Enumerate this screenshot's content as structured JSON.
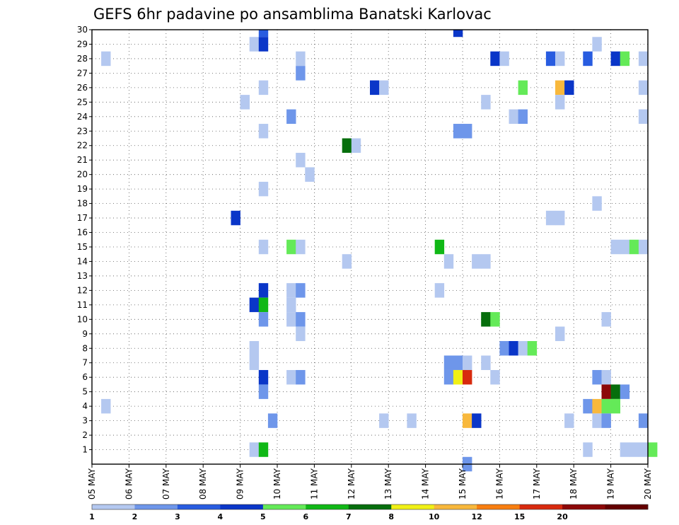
{
  "chart_data": {
    "type": "heatmap",
    "title": "GEFS 6hr padavine po ansamblima Banatski Karlovac",
    "y_ticks": [
      "1",
      "2",
      "3",
      "4",
      "5",
      "6",
      "7",
      "8",
      "9",
      "10",
      "11",
      "12",
      "13",
      "14",
      "15",
      "16",
      "17",
      "18",
      "19",
      "20",
      "21",
      "22",
      "23",
      "24",
      "25",
      "26",
      "27",
      "28",
      "29",
      "30"
    ],
    "x_ticks": [
      "05 MAY",
      "06 MAY",
      "07 MAY",
      "08 MAY",
      "09 MAY",
      "10 MAY",
      "11 MAY",
      "12 MAY",
      "13 MAY",
      "14 MAY",
      "15 MAY",
      "16 MAY",
      "17 MAY",
      "18 MAY",
      "19 MAY",
      "20 MAY"
    ],
    "x_range_days": [
      0,
      15
    ],
    "y_range": [
      0,
      30
    ],
    "grid": true,
    "colorbar": {
      "tick_labels": [
        "1",
        "2",
        "3",
        "4",
        "5",
        "6",
        "7",
        "8",
        "10",
        "12",
        "15",
        "20"
      ],
      "colors": [
        "#b4c8f0",
        "#6e96ea",
        "#285ce0",
        "#0a36c8",
        "#64ea58",
        "#10b816",
        "#066e0c",
        "#f0f016",
        "#f8b83c",
        "#f87e10",
        "#d82a0e",
        "#8c0808",
        "#640000"
      ]
    },
    "cells": [
      {
        "x": 4.5,
        "y": 30,
        "v": 3
      },
      {
        "x": 9.75,
        "y": 30,
        "v": 4
      },
      {
        "x": 4.25,
        "y": 29,
        "v": 1
      },
      {
        "x": 4.5,
        "y": 29,
        "v": 4
      },
      {
        "x": 13.5,
        "y": 29,
        "v": 1
      },
      {
        "x": 0.25,
        "y": 28,
        "v": 1
      },
      {
        "x": 5.5,
        "y": 28,
        "v": 1
      },
      {
        "x": 10.75,
        "y": 28,
        "v": 4
      },
      {
        "x": 11,
        "y": 28,
        "v": 1
      },
      {
        "x": 12.25,
        "y": 28,
        "v": 3
      },
      {
        "x": 12.5,
        "y": 28,
        "v": 1
      },
      {
        "x": 13.25,
        "y": 28,
        "v": 3
      },
      {
        "x": 14,
        "y": 28,
        "v": 4
      },
      {
        "x": 14.25,
        "y": 28,
        "v": 5
      },
      {
        "x": 14.75,
        "y": 28,
        "v": 1
      },
      {
        "x": 5.5,
        "y": 27,
        "v": 2
      },
      {
        "x": 4.5,
        "y": 26,
        "v": 1
      },
      {
        "x": 7.5,
        "y": 26,
        "v": 4
      },
      {
        "x": 7.75,
        "y": 26,
        "v": 1
      },
      {
        "x": 11.5,
        "y": 26,
        "v": 5
      },
      {
        "x": 12.5,
        "y": 26,
        "v": 9
      },
      {
        "x": 12.75,
        "y": 26,
        "v": 4
      },
      {
        "x": 14.75,
        "y": 26,
        "v": 1
      },
      {
        "x": 4,
        "y": 25,
        "v": 1
      },
      {
        "x": 10.5,
        "y": 25,
        "v": 1
      },
      {
        "x": 12.5,
        "y": 25,
        "v": 1
      },
      {
        "x": 5.25,
        "y": 24,
        "v": 2
      },
      {
        "x": 11.25,
        "y": 24,
        "v": 1
      },
      {
        "x": 11.5,
        "y": 24,
        "v": 2
      },
      {
        "x": 14.75,
        "y": 24,
        "v": 1
      },
      {
        "x": 4.5,
        "y": 23,
        "v": 1
      },
      {
        "x": 9.75,
        "y": 23,
        "v": 2
      },
      {
        "x": 10,
        "y": 23,
        "v": 2
      },
      {
        "x": 6.75,
        "y": 22,
        "v": 7
      },
      {
        "x": 7,
        "y": 22,
        "v": 1
      },
      {
        "x": 5.5,
        "y": 21,
        "v": 1
      },
      {
        "x": 5.75,
        "y": 20,
        "v": 1
      },
      {
        "x": 4.5,
        "y": 19,
        "v": 1
      },
      {
        "x": 13.5,
        "y": 18,
        "v": 1
      },
      {
        "x": 3.75,
        "y": 17,
        "v": 4
      },
      {
        "x": 12.25,
        "y": 17,
        "v": 1
      },
      {
        "x": 12.5,
        "y": 17,
        "v": 1
      },
      {
        "x": 4.5,
        "y": 15,
        "v": 1
      },
      {
        "x": 5.25,
        "y": 15,
        "v": 5
      },
      {
        "x": 5.5,
        "y": 15,
        "v": 1
      },
      {
        "x": 9.25,
        "y": 15,
        "v": 6
      },
      {
        "x": 14,
        "y": 15,
        "v": 1
      },
      {
        "x": 14.25,
        "y": 15,
        "v": 1
      },
      {
        "x": 14.5,
        "y": 15,
        "v": 5
      },
      {
        "x": 14.75,
        "y": 15,
        "v": 1
      },
      {
        "x": 6.75,
        "y": 14,
        "v": 1
      },
      {
        "x": 9.5,
        "y": 14,
        "v": 1
      },
      {
        "x": 10.25,
        "y": 14,
        "v": 1
      },
      {
        "x": 10.5,
        "y": 14,
        "v": 1
      },
      {
        "x": 4.5,
        "y": 12,
        "v": 4
      },
      {
        "x": 5.25,
        "y": 12,
        "v": 1
      },
      {
        "x": 5.5,
        "y": 12,
        "v": 2
      },
      {
        "x": 9.25,
        "y": 12,
        "v": 1
      },
      {
        "x": 4.25,
        "y": 11,
        "v": 4
      },
      {
        "x": 4.5,
        "y": 11,
        "v": 6
      },
      {
        "x": 5.25,
        "y": 11,
        "v": 1
      },
      {
        "x": 4.5,
        "y": 10,
        "v": 2
      },
      {
        "x": 5.25,
        "y": 10,
        "v": 1
      },
      {
        "x": 5.5,
        "y": 10,
        "v": 2
      },
      {
        "x": 10.5,
        "y": 10,
        "v": 7
      },
      {
        "x": 10.75,
        "y": 10,
        "v": 5
      },
      {
        "x": 13.75,
        "y": 10,
        "v": 1
      },
      {
        "x": 5.5,
        "y": 9,
        "v": 1
      },
      {
        "x": 12.5,
        "y": 9,
        "v": 1
      },
      {
        "x": 4.25,
        "y": 8,
        "v": 1
      },
      {
        "x": 11,
        "y": 8,
        "v": 2
      },
      {
        "x": 11.25,
        "y": 8,
        "v": 4
      },
      {
        "x": 11.5,
        "y": 8,
        "v": 1
      },
      {
        "x": 11.75,
        "y": 8,
        "v": 5
      },
      {
        "x": 4.25,
        "y": 7,
        "v": 1
      },
      {
        "x": 9.5,
        "y": 7,
        "v": 2
      },
      {
        "x": 9.75,
        "y": 7,
        "v": 2
      },
      {
        "x": 10,
        "y": 7,
        "v": 1
      },
      {
        "x": 10.5,
        "y": 7,
        "v": 1
      },
      {
        "x": 4.5,
        "y": 6,
        "v": 4
      },
      {
        "x": 5.25,
        "y": 6,
        "v": 1
      },
      {
        "x": 5.5,
        "y": 6,
        "v": 2
      },
      {
        "x": 9.5,
        "y": 6,
        "v": 2
      },
      {
        "x": 9.75,
        "y": 6,
        "v": 8
      },
      {
        "x": 10,
        "y": 6,
        "v": 11
      },
      {
        "x": 10.75,
        "y": 6,
        "v": 1
      },
      {
        "x": 13.5,
        "y": 6,
        "v": 2
      },
      {
        "x": 13.75,
        "y": 6,
        "v": 1
      },
      {
        "x": 4.5,
        "y": 5,
        "v": 2
      },
      {
        "x": 13.75,
        "y": 5,
        "v": 12
      },
      {
        "x": 14,
        "y": 5,
        "v": 7
      },
      {
        "x": 14.25,
        "y": 5,
        "v": 2
      },
      {
        "x": 0.25,
        "y": 4,
        "v": 1
      },
      {
        "x": 13.25,
        "y": 4,
        "v": 2
      },
      {
        "x": 13.5,
        "y": 4,
        "v": 9
      },
      {
        "x": 13.75,
        "y": 4,
        "v": 5
      },
      {
        "x": 14,
        "y": 4,
        "v": 5
      },
      {
        "x": 4.75,
        "y": 3,
        "v": 2
      },
      {
        "x": 7.75,
        "y": 3,
        "v": 1
      },
      {
        "x": 8.5,
        "y": 3,
        "v": 1
      },
      {
        "x": 10,
        "y": 3,
        "v": 9
      },
      {
        "x": 10.25,
        "y": 3,
        "v": 4
      },
      {
        "x": 12.75,
        "y": 3,
        "v": 1
      },
      {
        "x": 13.5,
        "y": 3,
        "v": 1
      },
      {
        "x": 13.75,
        "y": 3,
        "v": 2
      },
      {
        "x": 14.75,
        "y": 3,
        "v": 2
      },
      {
        "x": 4.25,
        "y": 1,
        "v": 1
      },
      {
        "x": 4.5,
        "y": 1,
        "v": 6
      },
      {
        "x": 13.25,
        "y": 1,
        "v": 1
      },
      {
        "x": 14.25,
        "y": 1,
        "v": 1
      },
      {
        "x": 14.5,
        "y": 1,
        "v": 1
      },
      {
        "x": 14.75,
        "y": 1,
        "v": 1
      },
      {
        "x": 15,
        "y": 1,
        "v": 5
      },
      {
        "x": 10,
        "y": 0,
        "v": 2
      }
    ]
  }
}
